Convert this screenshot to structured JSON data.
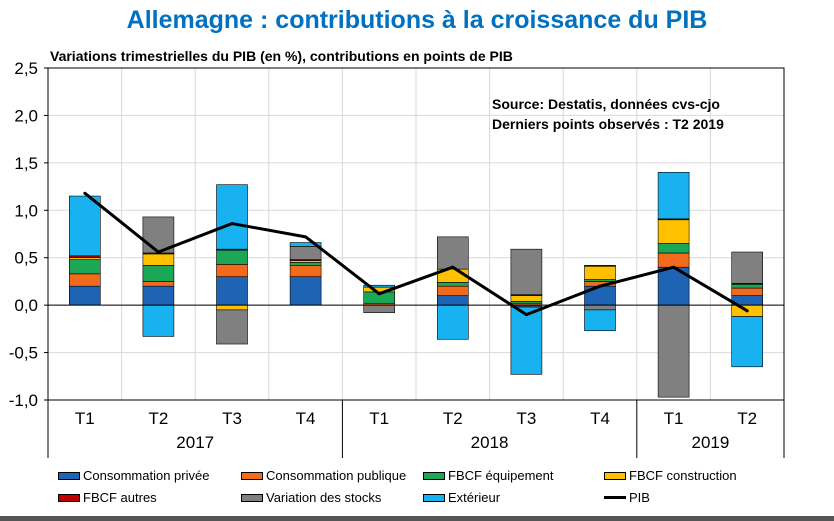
{
  "title": "Allemagne : contributions à la croissance du PIB",
  "subtitle": "Variations trimestrielles du PIB (en %), contributions en points de PIB",
  "chart_data": {
    "type": "bar",
    "stacked": true,
    "title": "Allemagne : contributions à la croissance du PIB",
    "subtitle": "Variations trimestrielles du PIB (en %), contributions en points de PIB",
    "annotation": [
      "Source: Destatis, données cvs-cjo",
      "Derniers points observés : T2 2019"
    ],
    "categories": [
      "T1",
      "T2",
      "T3",
      "T4",
      "T1",
      "T2",
      "T3",
      "T4",
      "T1",
      "T2"
    ],
    "years": [
      {
        "label": "2017",
        "count": 4
      },
      {
        "label": "2018",
        "count": 4
      },
      {
        "label": "2019",
        "count": 2
      }
    ],
    "ylim": [
      -1.0,
      2.5
    ],
    "yticks": [
      -1.0,
      -0.5,
      0.0,
      0.5,
      1.0,
      1.5,
      2.0,
      2.5
    ],
    "ytick_labels": [
      "-1,0",
      "-0,5",
      "0,0",
      "0,5",
      "1,0",
      "1,5",
      "2,0",
      "2,5"
    ],
    "grid": true,
    "series": [
      {
        "name": "Consommation privée",
        "color": "#1f63b4",
        "values": [
          0.2,
          0.2,
          0.3,
          0.3,
          0.0,
          0.1,
          -0.02,
          0.2,
          0.4,
          0.1
        ]
      },
      {
        "name": "Consommation publique",
        "color": "#f26b1d",
        "values": [
          0.13,
          0.05,
          0.13,
          0.12,
          0.02,
          0.1,
          0.02,
          0.05,
          0.15,
          0.08
        ]
      },
      {
        "name": "FBCF équipement",
        "color": "#1ba755",
        "values": [
          0.15,
          0.17,
          0.15,
          0.03,
          0.12,
          0.04,
          0.02,
          0.02,
          0.1,
          0.04
        ]
      },
      {
        "name": "FBCF construction",
        "color": "#ffc000",
        "values": [
          0.02,
          0.12,
          -0.05,
          0.02,
          0.05,
          0.14,
          0.06,
          0.14,
          0.25,
          -0.12
        ]
      },
      {
        "name": "FBCF autres",
        "color": "#c00000",
        "values": [
          0.02,
          0.01,
          0.01,
          0.01,
          0.0,
          0.0,
          0.01,
          0.01,
          0.01,
          0.01
        ]
      },
      {
        "name": "Variation des stocks",
        "color": "#808080",
        "values": [
          0.0,
          0.38,
          -0.36,
          0.14,
          -0.08,
          0.34,
          0.48,
          -0.05,
          -0.97,
          0.33
        ]
      },
      {
        "name": "Extérieur",
        "color": "#19b2f0",
        "values": [
          0.63,
          -0.33,
          0.68,
          0.04,
          0.02,
          -0.36,
          -0.71,
          -0.22,
          0.49,
          -0.53
        ]
      }
    ],
    "line": {
      "name": "PIB",
      "color": "#000000",
      "values": [
        1.18,
        0.56,
        0.86,
        0.72,
        0.12,
        0.4,
        -0.1,
        0.2,
        0.4,
        -0.06
      ]
    },
    "legend_position": "bottom"
  }
}
